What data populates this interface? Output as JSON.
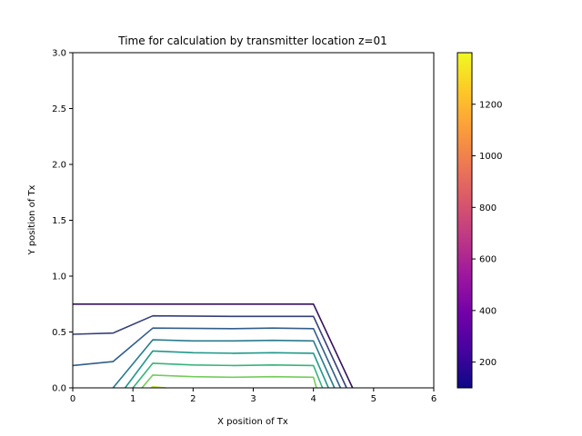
{
  "chart_data": {
    "type": "contour",
    "title": "Time for calculation by transmitter location z=01",
    "xlabel": "X position of Tx",
    "ylabel": "Y position of Tx",
    "xlim": [
      0,
      6
    ],
    "ylim": [
      0,
      3
    ],
    "xticks": [
      "0",
      "1",
      "2",
      "3",
      "4",
      "5",
      "6"
    ],
    "yticks": [
      "0.0",
      "0.5",
      "1.0",
      "1.5",
      "2.0",
      "2.5",
      "3.0"
    ],
    "colormap": "plasma",
    "colorbar": {
      "range": [
        100,
        1400
      ],
      "ticks": [
        "200",
        "400",
        "600",
        "800",
        "1000",
        "1200"
      ],
      "stops": [
        "#0d0887",
        "#46039f",
        "#7201a8",
        "#9c179e",
        "#bd3786",
        "#d8576b",
        "#ed7953",
        "#fb9f3a",
        "#fdca26",
        "#f0f921"
      ]
    },
    "series": [
      {
        "color": "#35105e",
        "points": [
          [
            0,
            0.75
          ],
          [
            4.0,
            0.75
          ],
          [
            4.65,
            0
          ]
        ]
      },
      {
        "color": "#353e7a",
        "points": [
          [
            0,
            0.48
          ],
          [
            0.67,
            0.49
          ],
          [
            1.33,
            0.645
          ],
          [
            2.67,
            0.64
          ],
          [
            4.0,
            0.64
          ],
          [
            4.55,
            0
          ]
        ]
      },
      {
        "color": "#325d89",
        "points": [
          [
            0,
            0.2
          ],
          [
            0.67,
            0.235
          ],
          [
            1.33,
            0.535
          ],
          [
            2.67,
            0.53
          ],
          [
            3.33,
            0.535
          ],
          [
            4.0,
            0.53
          ],
          [
            4.45,
            0
          ]
        ]
      },
      {
        "color": "#2a7a8d",
        "points": [
          [
            0.67,
            0
          ],
          [
            1.33,
            0.43
          ],
          [
            2.0,
            0.42
          ],
          [
            2.67,
            0.42
          ],
          [
            3.33,
            0.425
          ],
          [
            4.0,
            0.42
          ],
          [
            4.35,
            0
          ]
        ]
      },
      {
        "color": "#22988a",
        "points": [
          [
            0.87,
            0
          ],
          [
            1.33,
            0.33
          ],
          [
            2.0,
            0.315
          ],
          [
            2.67,
            0.31
          ],
          [
            3.33,
            0.315
          ],
          [
            4.0,
            0.31
          ],
          [
            4.25,
            0
          ]
        ]
      },
      {
        "color": "#36b47b",
        "points": [
          [
            1.0,
            0
          ],
          [
            1.33,
            0.22
          ],
          [
            2.0,
            0.205
          ],
          [
            2.67,
            0.2
          ],
          [
            3.33,
            0.205
          ],
          [
            4.0,
            0.2
          ],
          [
            4.15,
            0
          ]
        ]
      },
      {
        "color": "#73cc5d",
        "points": [
          [
            1.15,
            0
          ],
          [
            1.33,
            0.115
          ],
          [
            2.0,
            0.1
          ],
          [
            2.67,
            0.095
          ],
          [
            3.33,
            0.1
          ],
          [
            4.0,
            0.095
          ],
          [
            4.05,
            0
          ]
        ]
      },
      {
        "color": "#c5dd2f",
        "points": [
          [
            1.3,
            0
          ],
          [
            1.33,
            0.01
          ],
          [
            1.55,
            0
          ]
        ]
      }
    ]
  }
}
